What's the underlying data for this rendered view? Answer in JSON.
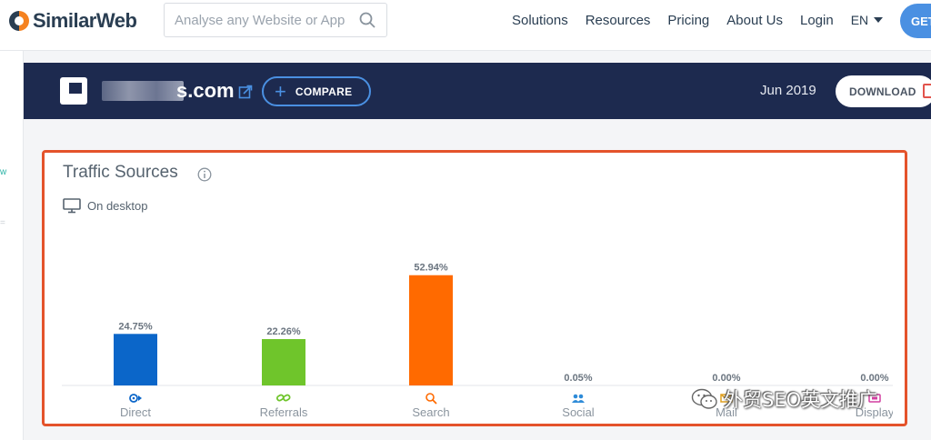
{
  "nav": {
    "brand": "SimilarWeb",
    "search_placeholder": "Analyse any Website or App",
    "items": [
      {
        "label": "Solutions"
      },
      {
        "label": "Resources"
      },
      {
        "label": "Pricing"
      },
      {
        "label": "About Us"
      },
      {
        "label": "Login"
      }
    ],
    "language": "EN",
    "cta_label": "GET"
  },
  "left_strip": {
    "marks": [
      "w",
      "="
    ]
  },
  "site": {
    "name_suffix": "s.com",
    "compare_label": "COMPARE",
    "period": "Jun 2019",
    "download_label": "DOWNLOAD"
  },
  "card": {
    "title": "Traffic Sources",
    "device": "On desktop"
  },
  "watermark": {
    "text": "外贸SEO英文推广"
  },
  "colors": {
    "header_bg": "#1d2a4f",
    "accent_blue": "#4a90e2",
    "highlight_border": "#e4532b",
    "direct": "#0b66c9",
    "referrals": "#6fc52b",
    "search": "#ff6a00",
    "social": "#2e8bd8",
    "mail": "#e0a020",
    "display": "#d23ea0"
  },
  "chart_data": {
    "type": "bar",
    "categories": [
      "Direct",
      "Referrals",
      "Search",
      "Social",
      "Mail",
      "Display"
    ],
    "values": [
      24.75,
      22.26,
      52.94,
      0.05,
      0.0,
      0.0
    ],
    "value_labels": [
      "24.75%",
      "22.26%",
      "52.94%",
      "0.05%",
      "0.00%",
      "0.00%"
    ],
    "icons": [
      "direct-icon",
      "referrals-icon",
      "search-icon",
      "social-icon",
      "mail-icon",
      "display-icon"
    ],
    "ylim": [
      0,
      55
    ],
    "grid": false,
    "legend": "none"
  }
}
